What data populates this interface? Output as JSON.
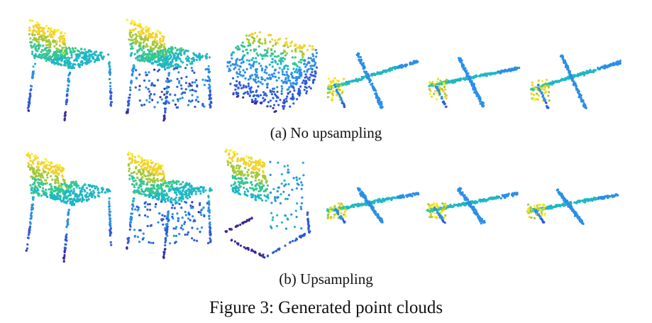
{
  "figure": {
    "row_a_caption": "(a) No upsampling",
    "row_b_caption": "(b) Upsampling",
    "title": "Figure 3: Generated point clouds"
  },
  "colormap": [
    "#3b2a9a",
    "#2f5bd8",
    "#2a8fe6",
    "#1fb7c4",
    "#37c693",
    "#a4c83a",
    "#f2d22a",
    "#f9f31f"
  ],
  "row_a_clouds": [
    "chair",
    "chair",
    "chair",
    "airplane",
    "airplane",
    "airplane"
  ],
  "row_b_clouds": [
    "chair",
    "chair",
    "chair",
    "airplane",
    "airplane",
    "airplane"
  ]
}
